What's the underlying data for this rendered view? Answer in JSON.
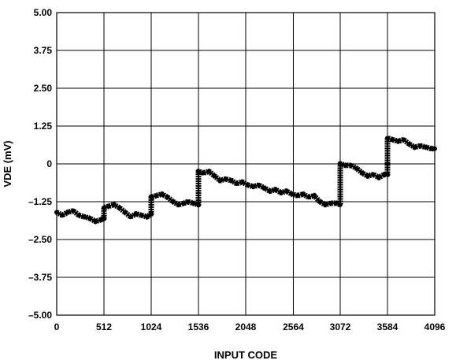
{
  "chart_data": {
    "type": "line",
    "title": "",
    "xlabel": "INPUT CODE",
    "ylabel": "VDE (mV)",
    "xlim": [
      0,
      4096
    ],
    "ylim": [
      -5.0,
      5.0
    ],
    "grid": true,
    "legend": "none",
    "x_ticks": [
      0,
      512,
      1024,
      1536,
      2048,
      2564,
      3072,
      3584,
      4096
    ],
    "x_tick_labels": [
      "0",
      "512",
      "1024",
      "1536",
      "2048",
      "2564",
      "3072",
      "3584",
      "4096"
    ],
    "y_ticks": [
      5.0,
      3.75,
      2.5,
      1.25,
      0,
      -1.25,
      -2.5,
      -3.75,
      -5.0
    ],
    "y_tick_labels": [
      "5.00",
      "3.75",
      "2.50",
      "1.25",
      "0",
      "–1.25",
      "–2.50",
      "–3.75",
      "–5.00"
    ],
    "series": [
      {
        "color": "#000000",
        "x": [
          0,
          60,
          120,
          180,
          240,
          300,
          360,
          420,
          480,
          511,
          512,
          560,
          620,
          680,
          740,
          800,
          860,
          920,
          980,
          1023,
          1024,
          1080,
          1140,
          1200,
          1260,
          1320,
          1380,
          1420,
          1480,
          1535,
          1536,
          1590,
          1650,
          1710,
          1770,
          1830,
          1890,
          1950,
          2010,
          2070,
          2130,
          2190,
          2250,
          2310,
          2370,
          2430,
          2490,
          2550,
          2610,
          2670,
          2730,
          2790,
          2850,
          2910,
          2970,
          3030,
          3071,
          3072,
          3130,
          3190,
          3250,
          3310,
          3370,
          3430,
          3490,
          3550,
          3583,
          3584,
          3640,
          3700,
          3760,
          3820,
          3880,
          3940,
          4000,
          4060,
          4095
        ],
        "y": [
          -1.6,
          -1.7,
          -1.6,
          -1.55,
          -1.7,
          -1.75,
          -1.8,
          -1.9,
          -1.85,
          -1.8,
          -1.45,
          -1.4,
          -1.35,
          -1.45,
          -1.6,
          -1.75,
          -1.65,
          -1.7,
          -1.75,
          -1.65,
          -1.1,
          -1.05,
          -1.0,
          -1.1,
          -1.25,
          -1.35,
          -1.3,
          -1.25,
          -1.3,
          -1.35,
          -0.25,
          -0.3,
          -0.25,
          -0.4,
          -0.55,
          -0.5,
          -0.55,
          -0.65,
          -0.6,
          -0.7,
          -0.75,
          -0.7,
          -0.8,
          -0.9,
          -0.85,
          -0.95,
          -0.9,
          -1.0,
          -1.05,
          -1.0,
          -1.1,
          -1.05,
          -1.25,
          -1.35,
          -1.3,
          -1.3,
          -1.35,
          0.0,
          -0.05,
          -0.05,
          -0.15,
          -0.3,
          -0.4,
          -0.35,
          -0.45,
          -0.35,
          -0.35,
          0.85,
          0.8,
          0.75,
          0.8,
          0.65,
          0.55,
          0.6,
          0.55,
          0.5,
          0.5
        ]
      }
    ]
  }
}
